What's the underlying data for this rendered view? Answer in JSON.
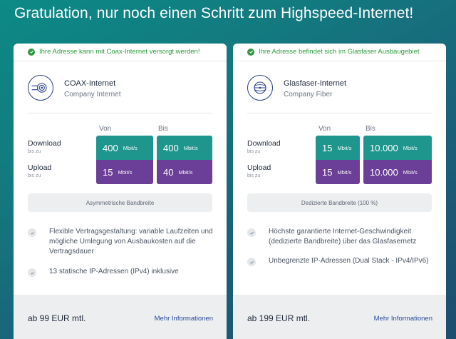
{
  "headline": "Gratulation, nur noch einen Schritt zum Highspeed-Internet!",
  "colors": {
    "teal": "#1e958d",
    "purple": "#6b3f97",
    "success": "#2e9a3c",
    "link": "#2a4a9a"
  },
  "cards": [
    {
      "status": "Ihre Adresse kann mit Coax-Internet versorgt werden!",
      "icon": "coax-cable-icon",
      "name": "COAX-Internet",
      "subtitle": "Company Internet",
      "col_from": "Von",
      "col_to": "Bis",
      "download_label": "Download",
      "download_sub": "bis zu",
      "upload_label": "Upload",
      "upload_sub": "bis zu",
      "download_from": "400",
      "download_to": "400",
      "upload_from": "15",
      "upload_to": "40",
      "unit": "Mbit/s",
      "bandwidth": "Asymmetrische Bandbreite",
      "features": [
        "Flexible Vertragsgestaltung: variable Laufzeiten und mögliche Umlegung von Ausbaukosten auf die Vertragsdauer",
        "13 statische IP-Adressen (IPv4) inklusive"
      ],
      "price": "ab 99 EUR mtl.",
      "more": "Mehr Informationen"
    },
    {
      "status": "Ihre Adresse befindet sich im Glasfaser Ausbaugebiet",
      "icon": "fiber-optic-icon",
      "name": "Glasfaser-Internet",
      "subtitle": "Company Fiber",
      "col_from": "Von",
      "col_to": "Bis",
      "download_label": "Download",
      "download_sub": "bis zu",
      "upload_label": "Upload",
      "upload_sub": "bis zu",
      "download_from": "15",
      "download_to": "10.000",
      "upload_from": "15",
      "upload_to": "10.000",
      "unit": "Mbit/s",
      "bandwidth": "Dedizierte Bandbreite (100 %)",
      "features": [
        "Höchste garantierte Internet-Geschwindigkeit (dedizierte Bandbreite) über das Glasfasernetz",
        "Unbegrenzte IP-Adressen (Dual Stack - IPv4/IPv6)"
      ],
      "price": "ab 199 EUR mtl.",
      "more": "Mehr Informationen"
    }
  ]
}
